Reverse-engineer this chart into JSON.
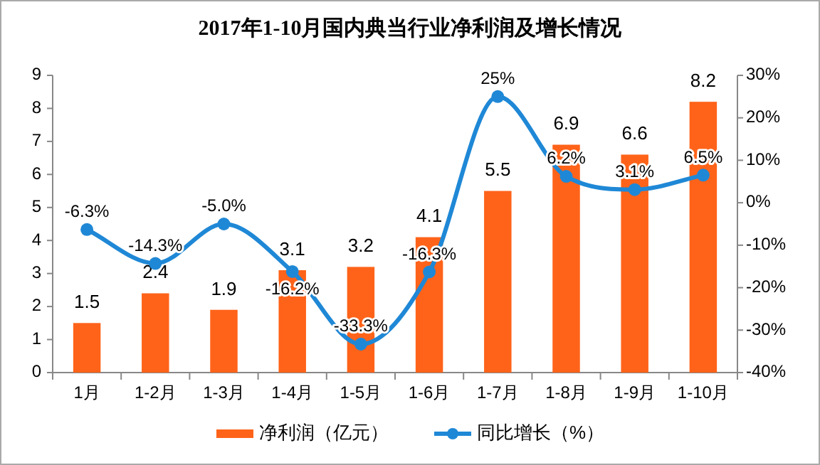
{
  "chart_data": {
    "type": "bar",
    "title": "2017年1-10月国内典当行业净利润及增长情况",
    "categories": [
      "1月",
      "1-2月",
      "1-3月",
      "1-4月",
      "1-5月",
      "1-6月",
      "1-7月",
      "1-8月",
      "1-9月",
      "1-10月"
    ],
    "series": [
      {
        "name": "净利润（亿元）",
        "color": "#ff6319",
        "values": [
          1.5,
          2.4,
          1.9,
          3.1,
          3.2,
          4.1,
          5.5,
          6.9,
          6.6,
          8.2
        ],
        "value_labels": [
          "1.5",
          "2.4",
          "1.9",
          "3.1",
          "3.2",
          "4.1",
          "5.5",
          "6.9",
          "6.6",
          "8.2"
        ]
      },
      {
        "name": "同比增长（%）",
        "type": "line",
        "axis": "y2",
        "color": "#1f88d6",
        "marker": "circle",
        "values": [
          -6.3,
          -14.3,
          -5.0,
          -16.2,
          -33.3,
          -16.3,
          25,
          6.2,
          3.1,
          6.5
        ],
        "value_labels": [
          "-6.3%",
          "-14.3%",
          "-5.0%",
          "-16.2%",
          "-33.3%",
          "-16.3%",
          "25%",
          "6.2%",
          "3.1%",
          "6.5%"
        ]
      }
    ],
    "ylim": [
      0,
      9
    ],
    "yticks": [
      0,
      1,
      2,
      3,
      4,
      5,
      6,
      7,
      8,
      9
    ],
    "y2lim": [
      -40,
      30
    ],
    "y2ticks": [
      {
        "value": -40,
        "label": "-40%"
      },
      {
        "value": -30,
        "label": "-30%"
      },
      {
        "value": -20,
        "label": "-20%"
      },
      {
        "value": -10,
        "label": "-10%"
      },
      {
        "value": 0,
        "label": "0%"
      },
      {
        "value": 10,
        "label": "10%"
      },
      {
        "value": 20,
        "label": "20%"
      },
      {
        "value": 30,
        "label": "30%"
      }
    ],
    "legend": "bottom"
  }
}
